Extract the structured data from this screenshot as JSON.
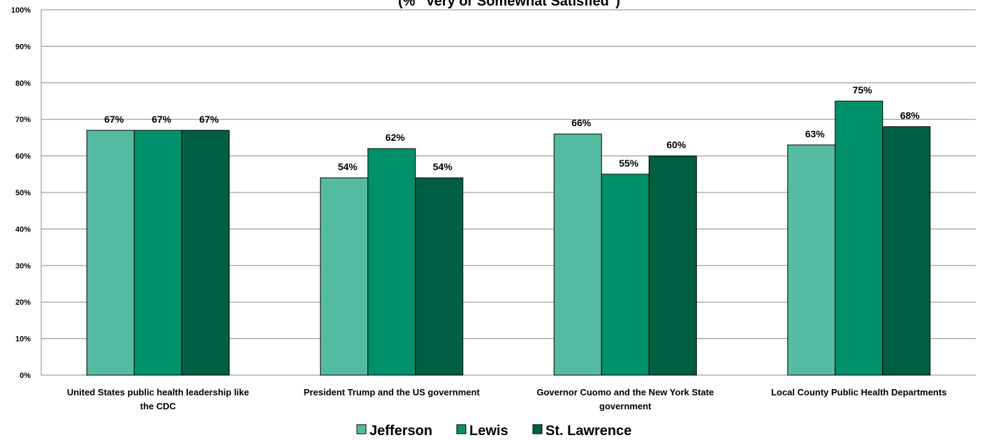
{
  "chart_data": {
    "type": "bar",
    "title": "(% \"Very or Somewhat Satisfied\")",
    "categories": [
      [
        "United States public health leadership like",
        "the CDC"
      ],
      [
        "President Trump and the US government"
      ],
      [
        "Governor Cuomo and the New York State",
        "government"
      ],
      [
        "Local County Public Health Departments"
      ]
    ],
    "series": [
      {
        "name": "Jefferson",
        "color": "#55BBA0",
        "values": [
          67,
          54,
          66,
          63
        ]
      },
      {
        "name": "Lewis",
        "color": "#00916B",
        "values": [
          67,
          62,
          55,
          75
        ]
      },
      {
        "name": "St. Lawrence",
        "color": "#005E42",
        "values": [
          67,
          54,
          60,
          68
        ]
      }
    ],
    "ylim": [
      0,
      100
    ],
    "yticks": [
      0,
      10,
      20,
      30,
      40,
      50,
      60,
      70,
      80,
      90,
      100
    ],
    "value_suffix": "%",
    "grid": true,
    "legend": "bottom"
  }
}
